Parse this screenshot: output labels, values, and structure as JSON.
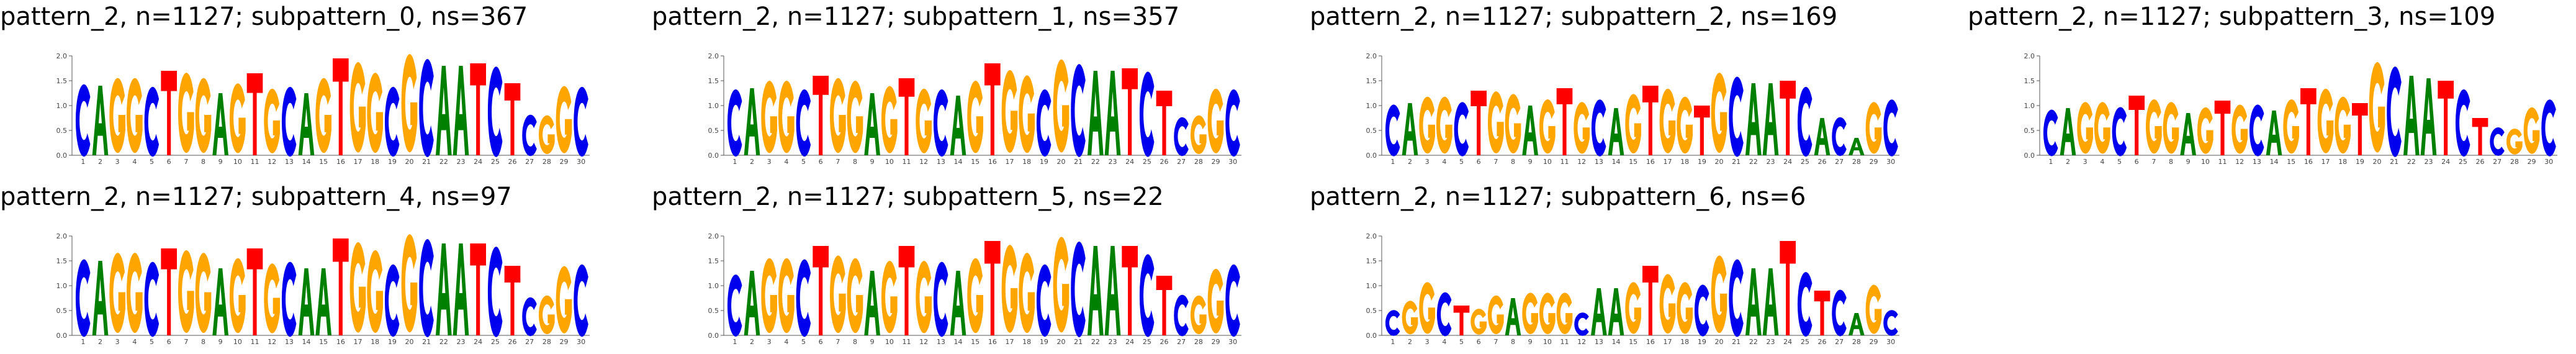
{
  "figure": {
    "background": "#ffffff"
  },
  "colors": {
    "A": "#008000",
    "C": "#0000ee",
    "G": "#ffa500",
    "T": "#ff0000"
  },
  "chart_data": [
    {
      "type": "sequence-logo",
      "title": "pattern_2, n=1127; subpattern_0, ns=367",
      "ylim": [
        0,
        2
      ],
      "yticks": [
        "0.0",
        "0.5",
        "1.0",
        "1.5",
        "2.0"
      ],
      "xticks": [
        "1",
        "2",
        "3",
        "4",
        "5",
        "6",
        "7",
        "8",
        "9",
        "10",
        "11",
        "12",
        "13",
        "14",
        "15",
        "16",
        "17",
        "18",
        "19",
        "20",
        "21",
        "22",
        "23",
        "24",
        "25",
        "26",
        "27",
        "28",
        "29",
        "30"
      ],
      "positions": [
        {
          "letter": "C",
          "bits": 1.4
        },
        {
          "letter": "A",
          "bits": 1.4
        },
        {
          "letter": "G",
          "bits": 1.45
        },
        {
          "letter": "G",
          "bits": 1.45
        },
        {
          "letter": "C",
          "bits": 1.35
        },
        {
          "letter": "T",
          "bits": 1.7
        },
        {
          "letter": "G",
          "bits": 1.55
        },
        {
          "letter": "G",
          "bits": 1.45
        },
        {
          "letter": "A",
          "bits": 1.25
        },
        {
          "letter": "G",
          "bits": 1.35
        },
        {
          "letter": "T",
          "bits": 1.65
        },
        {
          "letter": "G",
          "bits": 1.25
        },
        {
          "letter": "C",
          "bits": 1.35
        },
        {
          "letter": "A",
          "bits": 1.25
        },
        {
          "letter": "G",
          "bits": 1.45
        },
        {
          "letter": "T",
          "bits": 1.95
        },
        {
          "letter": "G",
          "bits": 1.75
        },
        {
          "letter": "G",
          "bits": 1.55
        },
        {
          "letter": "C",
          "bits": 1.35
        },
        {
          "letter": "G",
          "bits": 1.9
        },
        {
          "letter": "C",
          "bits": 1.9
        },
        {
          "letter": "A",
          "bits": 1.8
        },
        {
          "letter": "A",
          "bits": 1.8
        },
        {
          "letter": "T",
          "bits": 1.85
        },
        {
          "letter": "C",
          "bits": 1.75
        },
        {
          "letter": "T",
          "bits": 1.45
        },
        {
          "letter": "C",
          "bits": 0.8
        },
        {
          "letter": "G",
          "bits": 0.75
        },
        {
          "letter": "G",
          "bits": 1.3
        },
        {
          "letter": "C",
          "bits": 1.35
        }
      ]
    },
    {
      "type": "sequence-logo",
      "title": "pattern_2, n=1127; subpattern_1, ns=357",
      "ylim": [
        0,
        2
      ],
      "yticks": [
        "0.0",
        "0.5",
        "1.0",
        "1.5",
        "2.0"
      ],
      "xticks": [
        "1",
        "2",
        "3",
        "4",
        "5",
        "6",
        "7",
        "8",
        "9",
        "10",
        "11",
        "12",
        "13",
        "14",
        "15",
        "16",
        "17",
        "18",
        "19",
        "20",
        "21",
        "22",
        "23",
        "24",
        "25",
        "26",
        "27",
        "28",
        "29",
        "30"
      ],
      "positions": [
        {
          "letter": "C",
          "bits": 1.3
        },
        {
          "letter": "A",
          "bits": 1.35
        },
        {
          "letter": "G",
          "bits": 1.4
        },
        {
          "letter": "G",
          "bits": 1.4
        },
        {
          "letter": "C",
          "bits": 1.3
        },
        {
          "letter": "T",
          "bits": 1.6
        },
        {
          "letter": "G",
          "bits": 1.45
        },
        {
          "letter": "G",
          "bits": 1.4
        },
        {
          "letter": "A",
          "bits": 1.25
        },
        {
          "letter": "G",
          "bits": 1.3
        },
        {
          "letter": "T",
          "bits": 1.55
        },
        {
          "letter": "G",
          "bits": 1.25
        },
        {
          "letter": "C",
          "bits": 1.3
        },
        {
          "letter": "A",
          "bits": 1.2
        },
        {
          "letter": "G",
          "bits": 1.4
        },
        {
          "letter": "T",
          "bits": 1.85
        },
        {
          "letter": "G",
          "bits": 1.6
        },
        {
          "letter": "G",
          "bits": 1.5
        },
        {
          "letter": "C",
          "bits": 1.3
        },
        {
          "letter": "G",
          "bits": 1.8
        },
        {
          "letter": "C",
          "bits": 1.8
        },
        {
          "letter": "A",
          "bits": 1.7
        },
        {
          "letter": "A",
          "bits": 1.7
        },
        {
          "letter": "T",
          "bits": 1.75
        },
        {
          "letter": "C",
          "bits": 1.65
        },
        {
          "letter": "T",
          "bits": 1.3
        },
        {
          "letter": "C",
          "bits": 0.75
        },
        {
          "letter": "G",
          "bits": 0.75
        },
        {
          "letter": "G",
          "bits": 1.25
        },
        {
          "letter": "C",
          "bits": 1.3
        }
      ]
    },
    {
      "type": "sequence-logo",
      "title": "pattern_2, n=1127; subpattern_2, ns=169",
      "ylim": [
        0,
        2
      ],
      "yticks": [
        "0.0",
        "0.5",
        "1.0",
        "1.5",
        "2.0"
      ],
      "xticks": [
        "1",
        "2",
        "3",
        "4",
        "5",
        "6",
        "7",
        "8",
        "9",
        "10",
        "11",
        "12",
        "13",
        "14",
        "15",
        "16",
        "17",
        "18",
        "19",
        "20",
        "21",
        "22",
        "23",
        "24",
        "25",
        "26",
        "27",
        "28",
        "29",
        "30"
      ],
      "positions": [
        {
          "letter": "C",
          "bits": 1.0
        },
        {
          "letter": "A",
          "bits": 1.05
        },
        {
          "letter": "G",
          "bits": 1.1
        },
        {
          "letter": "G",
          "bits": 1.1
        },
        {
          "letter": "C",
          "bits": 1.05
        },
        {
          "letter": "T",
          "bits": 1.3
        },
        {
          "letter": "G",
          "bits": 1.2
        },
        {
          "letter": "G",
          "bits": 1.15
        },
        {
          "letter": "A",
          "bits": 1.0
        },
        {
          "letter": "G",
          "bits": 1.05
        },
        {
          "letter": "T",
          "bits": 1.35
        },
        {
          "letter": "G",
          "bits": 1.0
        },
        {
          "letter": "C",
          "bits": 1.1
        },
        {
          "letter": "A",
          "bits": 0.95
        },
        {
          "letter": "G",
          "bits": 1.15
        },
        {
          "letter": "T",
          "bits": 1.4
        },
        {
          "letter": "G",
          "bits": 1.25
        },
        {
          "letter": "G",
          "bits": 1.1
        },
        {
          "letter": "T",
          "bits": 1.0
        },
        {
          "letter": "G",
          "bits": 1.55
        },
        {
          "letter": "C",
          "bits": 1.55
        },
        {
          "letter": "A",
          "bits": 1.45
        },
        {
          "letter": "A",
          "bits": 1.45
        },
        {
          "letter": "T",
          "bits": 1.5
        },
        {
          "letter": "C",
          "bits": 1.35
        },
        {
          "letter": "A",
          "bits": 0.75
        },
        {
          "letter": "C",
          "bits": 0.75
        },
        {
          "letter": "A",
          "bits": 0.35
        },
        {
          "letter": "G",
          "bits": 1.0
        },
        {
          "letter": "C",
          "bits": 1.1
        }
      ]
    },
    {
      "type": "sequence-logo",
      "title": "pattern_2, n=1127; subpattern_3, ns=109",
      "ylim": [
        0,
        2
      ],
      "yticks": [
        "0.0",
        "0.5",
        "1.0",
        "1.5",
        "2.0"
      ],
      "xticks": [
        "1",
        "2",
        "3",
        "4",
        "5",
        "6",
        "7",
        "8",
        "9",
        "10",
        "11",
        "12",
        "13",
        "14",
        "15",
        "16",
        "17",
        "18",
        "19",
        "20",
        "21",
        "22",
        "23",
        "24",
        "25",
        "26",
        "27",
        "28",
        "29",
        "30"
      ],
      "positions": [
        {
          "letter": "C",
          "bits": 0.9
        },
        {
          "letter": "A",
          "bits": 0.95
        },
        {
          "letter": "G",
          "bits": 1.0
        },
        {
          "letter": "G",
          "bits": 1.0
        },
        {
          "letter": "C",
          "bits": 0.95
        },
        {
          "letter": "T",
          "bits": 1.2
        },
        {
          "letter": "G",
          "bits": 1.05
        },
        {
          "letter": "G",
          "bits": 1.0
        },
        {
          "letter": "A",
          "bits": 0.85
        },
        {
          "letter": "G",
          "bits": 0.9
        },
        {
          "letter": "T",
          "bits": 1.1
        },
        {
          "letter": "G",
          "bits": 0.95
        },
        {
          "letter": "C",
          "bits": 1.0
        },
        {
          "letter": "A",
          "bits": 0.9
        },
        {
          "letter": "G",
          "bits": 1.05
        },
        {
          "letter": "T",
          "bits": 1.35
        },
        {
          "letter": "G",
          "bits": 1.25
        },
        {
          "letter": "G",
          "bits": 1.1
        },
        {
          "letter": "T",
          "bits": 1.05
        },
        {
          "letter": "G",
          "bits": 1.75
        },
        {
          "letter": "C",
          "bits": 1.75
        },
        {
          "letter": "A",
          "bits": 1.6
        },
        {
          "letter": "A",
          "bits": 1.55
        },
        {
          "letter": "T",
          "bits": 1.5
        },
        {
          "letter": "C",
          "bits": 1.3
        },
        {
          "letter": "T",
          "bits": 0.75
        },
        {
          "letter": "C",
          "bits": 0.55
        },
        {
          "letter": "G",
          "bits": 0.5
        },
        {
          "letter": "G",
          "bits": 0.9
        },
        {
          "letter": "C",
          "bits": 1.1
        }
      ]
    },
    {
      "type": "sequence-logo",
      "title": "pattern_2, n=1127; subpattern_4, ns=97",
      "ylim": [
        0,
        2
      ],
      "yticks": [
        "0.0",
        "0.5",
        "1.0",
        "1.5",
        "2.0"
      ],
      "xticks": [
        "1",
        "2",
        "3",
        "4",
        "5",
        "6",
        "7",
        "8",
        "9",
        "10",
        "11",
        "12",
        "13",
        "14",
        "15",
        "16",
        "17",
        "18",
        "19",
        "20",
        "21",
        "22",
        "23",
        "24",
        "25",
        "26",
        "27",
        "28",
        "29",
        "30"
      ],
      "positions": [
        {
          "letter": "C",
          "bits": 1.5
        },
        {
          "letter": "A",
          "bits": 1.5
        },
        {
          "letter": "G",
          "bits": 1.55
        },
        {
          "letter": "G",
          "bits": 1.55
        },
        {
          "letter": "C",
          "bits": 1.45
        },
        {
          "letter": "T",
          "bits": 1.75
        },
        {
          "letter": "G",
          "bits": 1.6
        },
        {
          "letter": "G",
          "bits": 1.55
        },
        {
          "letter": "A",
          "bits": 1.35
        },
        {
          "letter": "G",
          "bits": 1.45
        },
        {
          "letter": "T",
          "bits": 1.75
        },
        {
          "letter": "G",
          "bits": 1.35
        },
        {
          "letter": "C",
          "bits": 1.45
        },
        {
          "letter": "A",
          "bits": 1.35
        },
        {
          "letter": "A",
          "bits": 1.35
        },
        {
          "letter": "T",
          "bits": 1.95
        },
        {
          "letter": "G",
          "bits": 1.75
        },
        {
          "letter": "G",
          "bits": 1.6
        },
        {
          "letter": "C",
          "bits": 1.4
        },
        {
          "letter": "G",
          "bits": 1.9
        },
        {
          "letter": "C",
          "bits": 1.9
        },
        {
          "letter": "A",
          "bits": 1.85
        },
        {
          "letter": "A",
          "bits": 1.85
        },
        {
          "letter": "T",
          "bits": 1.85
        },
        {
          "letter": "C",
          "bits": 1.75
        },
        {
          "letter": "T",
          "bits": 1.4
        },
        {
          "letter": "C",
          "bits": 0.75
        },
        {
          "letter": "G",
          "bits": 0.75
        },
        {
          "letter": "G",
          "bits": 1.3
        },
        {
          "letter": "C",
          "bits": 1.4
        }
      ]
    },
    {
      "type": "sequence-logo",
      "title": "pattern_2, n=1127; subpattern_5, ns=22",
      "ylim": [
        0,
        2
      ],
      "yticks": [
        "0.0",
        "0.5",
        "1.0",
        "1.5",
        "2.0"
      ],
      "xticks": [
        "1",
        "2",
        "3",
        "4",
        "5",
        "6",
        "7",
        "8",
        "9",
        "10",
        "11",
        "12",
        "13",
        "14",
        "15",
        "16",
        "17",
        "18",
        "19",
        "20",
        "21",
        "22",
        "23",
        "24",
        "25",
        "26",
        "27",
        "28",
        "29",
        "30"
      ],
      "positions": [
        {
          "letter": "C",
          "bits": 1.2
        },
        {
          "letter": "A",
          "bits": 1.3
        },
        {
          "letter": "G",
          "bits": 1.45
        },
        {
          "letter": "G",
          "bits": 1.45
        },
        {
          "letter": "C",
          "bits": 1.5
        },
        {
          "letter": "T",
          "bits": 1.8
        },
        {
          "letter": "G",
          "bits": 1.5
        },
        {
          "letter": "G",
          "bits": 1.45
        },
        {
          "letter": "A",
          "bits": 1.3
        },
        {
          "letter": "G",
          "bits": 1.4
        },
        {
          "letter": "T",
          "bits": 1.8
        },
        {
          "letter": "G",
          "bits": 1.4
        },
        {
          "letter": "C",
          "bits": 1.45
        },
        {
          "letter": "A",
          "bits": 1.3
        },
        {
          "letter": "G",
          "bits": 1.45
        },
        {
          "letter": "T",
          "bits": 1.9
        },
        {
          "letter": "G",
          "bits": 1.7
        },
        {
          "letter": "G",
          "bits": 1.55
        },
        {
          "letter": "C",
          "bits": 1.4
        },
        {
          "letter": "G",
          "bits": 1.85
        },
        {
          "letter": "C",
          "bits": 1.85
        },
        {
          "letter": "A",
          "bits": 1.8
        },
        {
          "letter": "A",
          "bits": 1.8
        },
        {
          "letter": "T",
          "bits": 1.8
        },
        {
          "letter": "C",
          "bits": 1.6
        },
        {
          "letter": "T",
          "bits": 1.2
        },
        {
          "letter": "C",
          "bits": 0.8
        },
        {
          "letter": "G",
          "bits": 0.75
        },
        {
          "letter": "G",
          "bits": 1.25
        },
        {
          "letter": "C",
          "bits": 1.4
        }
      ]
    },
    {
      "type": "sequence-logo",
      "title": "pattern_2, n=1127; subpattern_6, ns=6",
      "ylim": [
        0,
        2
      ],
      "yticks": [
        "0.0",
        "0.5",
        "1.0",
        "1.5",
        "2.0"
      ],
      "xticks": [
        "1",
        "2",
        "3",
        "4",
        "5",
        "6",
        "7",
        "8",
        "9",
        "10",
        "11",
        "12",
        "13",
        "14",
        "15",
        "16",
        "17",
        "18",
        "19",
        "20",
        "21",
        "22",
        "23",
        "24",
        "25",
        "26",
        "27",
        "28",
        "29",
        "30"
      ],
      "positions": [
        {
          "letter": "C",
          "bits": 0.5
        },
        {
          "letter": "G",
          "bits": 0.65
        },
        {
          "letter": "G",
          "bits": 1.0
        },
        {
          "letter": "C",
          "bits": 0.85
        },
        {
          "letter": "T",
          "bits": 0.6
        },
        {
          "letter": "G",
          "bits": 0.5
        },
        {
          "letter": "G",
          "bits": 0.75
        },
        {
          "letter": "A",
          "bits": 0.75
        },
        {
          "letter": "G",
          "bits": 0.8
        },
        {
          "letter": "G",
          "bits": 0.8
        },
        {
          "letter": "G",
          "bits": 0.8
        },
        {
          "letter": "C",
          "bits": 0.45
        },
        {
          "letter": "A",
          "bits": 0.95
        },
        {
          "letter": "A",
          "bits": 0.95
        },
        {
          "letter": "G",
          "bits": 1.0
        },
        {
          "letter": "T",
          "bits": 1.4
        },
        {
          "letter": "G",
          "bits": 1.15
        },
        {
          "letter": "G",
          "bits": 1.0
        },
        {
          "letter": "C",
          "bits": 1.0
        },
        {
          "letter": "G",
          "bits": 1.5
        },
        {
          "letter": "C",
          "bits": 1.5
        },
        {
          "letter": "A",
          "bits": 1.35
        },
        {
          "letter": "A",
          "bits": 1.35
        },
        {
          "letter": "T",
          "bits": 1.9
        },
        {
          "letter": "C",
          "bits": 1.25
        },
        {
          "letter": "T",
          "bits": 0.9
        },
        {
          "letter": "C",
          "bits": 0.9
        },
        {
          "letter": "A",
          "bits": 0.45
        },
        {
          "letter": "G",
          "bits": 0.95
        },
        {
          "letter": "C",
          "bits": 0.5
        }
      ]
    }
  ]
}
